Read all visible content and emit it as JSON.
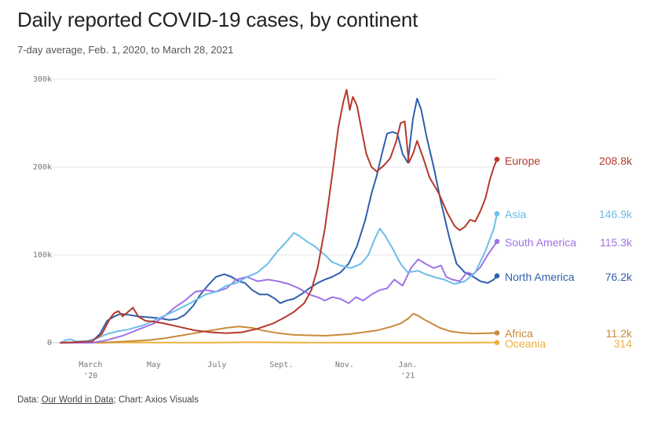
{
  "header": {
    "title": "Daily reported COVID-19 cases, by continent",
    "subtitle": "7-day average, Feb. 1, 2020, to March 28, 2021"
  },
  "footer": {
    "prefix": "Data: ",
    "source_link": "Our World in Data",
    "suffix": "; Chart: Axios Visuals"
  },
  "chart_data": {
    "type": "line",
    "title": "Daily reported COVID-19 cases, by continent",
    "subtitle": "7-day average, Feb. 1, 2020, to March 28, 2021",
    "x_unit": "days since 2020-02-01",
    "xlim": [
      0,
      421
    ],
    "ylim": [
      0,
      300000
    ],
    "y_ticks": [
      {
        "value": 0,
        "label": "0"
      },
      {
        "value": 100000,
        "label": "100k"
      },
      {
        "value": 200000,
        "label": "200k"
      },
      {
        "value": 300000,
        "label": "300k"
      }
    ],
    "x_ticks": [
      {
        "day": 29,
        "label": "March",
        "sublabel": "'20"
      },
      {
        "day": 90,
        "label": "May",
        "sublabel": ""
      },
      {
        "day": 151,
        "label": "July",
        "sublabel": ""
      },
      {
        "day": 213,
        "label": "Sept.",
        "sublabel": ""
      },
      {
        "day": 274,
        "label": "Nov.",
        "sublabel": ""
      },
      {
        "day": 335,
        "label": "Jan.",
        "sublabel": "'21"
      }
    ],
    "grid": true,
    "legend": "direct labels at line ends (right)",
    "series": [
      {
        "name": "Europe",
        "end_label": "208.8k",
        "color": "#b5392a",
        "points": [
          [
            0,
            0
          ],
          [
            30,
            1500
          ],
          [
            40,
            10000
          ],
          [
            48,
            28000
          ],
          [
            52,
            34000
          ],
          [
            56,
            36000
          ],
          [
            60,
            30000
          ],
          [
            66,
            36000
          ],
          [
            70,
            40000
          ],
          [
            75,
            30000
          ],
          [
            82,
            25000
          ],
          [
            90,
            24000
          ],
          [
            100,
            22000
          ],
          [
            115,
            18000
          ],
          [
            130,
            14000
          ],
          [
            145,
            12000
          ],
          [
            160,
            11000
          ],
          [
            175,
            12000
          ],
          [
            190,
            16000
          ],
          [
            205,
            22000
          ],
          [
            215,
            28000
          ],
          [
            225,
            35000
          ],
          [
            235,
            45000
          ],
          [
            242,
            60000
          ],
          [
            248,
            85000
          ],
          [
            255,
            130000
          ],
          [
            262,
            190000
          ],
          [
            268,
            245000
          ],
          [
            273,
            275000
          ],
          [
            276,
            288000
          ],
          [
            279,
            265000
          ],
          [
            282,
            280000
          ],
          [
            286,
            270000
          ],
          [
            290,
            245000
          ],
          [
            295,
            215000
          ],
          [
            300,
            200000
          ],
          [
            305,
            195000
          ],
          [
            312,
            202000
          ],
          [
            318,
            210000
          ],
          [
            324,
            230000
          ],
          [
            328,
            250000
          ],
          [
            332,
            252000
          ],
          [
            336,
            205000
          ],
          [
            340,
            215000
          ],
          [
            344,
            230000
          ],
          [
            350,
            210000
          ],
          [
            356,
            188000
          ],
          [
            365,
            170000
          ],
          [
            373,
            148000
          ],
          [
            380,
            133000
          ],
          [
            385,
            128000
          ],
          [
            390,
            132000
          ],
          [
            395,
            140000
          ],
          [
            400,
            138000
          ],
          [
            405,
            150000
          ],
          [
            410,
            165000
          ],
          [
            414,
            185000
          ],
          [
            418,
            200000
          ],
          [
            421,
            208800
          ]
        ]
      },
      {
        "name": "Asia",
        "end_label": "146.9k",
        "color": "#6cbde9",
        "points": [
          [
            0,
            0
          ],
          [
            5,
            3000
          ],
          [
            10,
            4000
          ],
          [
            15,
            1500
          ],
          [
            25,
            2000
          ],
          [
            35,
            5000
          ],
          [
            45,
            10000
          ],
          [
            55,
            13000
          ],
          [
            65,
            15000
          ],
          [
            80,
            20000
          ],
          [
            95,
            28000
          ],
          [
            110,
            36000
          ],
          [
            125,
            45000
          ],
          [
            140,
            55000
          ],
          [
            150,
            58000
          ],
          [
            160,
            65000
          ],
          [
            170,
            68000
          ],
          [
            180,
            75000
          ],
          [
            190,
            80000
          ],
          [
            200,
            90000
          ],
          [
            210,
            105000
          ],
          [
            218,
            115000
          ],
          [
            225,
            125000
          ],
          [
            230,
            122000
          ],
          [
            238,
            115000
          ],
          [
            245,
            110000
          ],
          [
            255,
            100000
          ],
          [
            262,
            92000
          ],
          [
            270,
            88000
          ],
          [
            280,
            85000
          ],
          [
            290,
            90000
          ],
          [
            297,
            100000
          ],
          [
            303,
            118000
          ],
          [
            308,
            130000
          ],
          [
            313,
            122000
          ],
          [
            320,
            108000
          ],
          [
            328,
            90000
          ],
          [
            335,
            80000
          ],
          [
            345,
            82000
          ],
          [
            352,
            78000
          ],
          [
            360,
            75000
          ],
          [
            370,
            72000
          ],
          [
            380,
            67000
          ],
          [
            390,
            70000
          ],
          [
            400,
            80000
          ],
          [
            410,
            105000
          ],
          [
            418,
            130000
          ],
          [
            421,
            146900
          ]
        ]
      },
      {
        "name": "South America",
        "end_label": "115.3k",
        "color": "#9f72e6",
        "points": [
          [
            0,
            0
          ],
          [
            30,
            0
          ],
          [
            45,
            3000
          ],
          [
            60,
            8000
          ],
          [
            75,
            15000
          ],
          [
            90,
            22000
          ],
          [
            100,
            30000
          ],
          [
            110,
            40000
          ],
          [
            120,
            48000
          ],
          [
            130,
            58000
          ],
          [
            140,
            60000
          ],
          [
            150,
            58000
          ],
          [
            160,
            62000
          ],
          [
            170,
            72000
          ],
          [
            180,
            75000
          ],
          [
            190,
            70000
          ],
          [
            200,
            72000
          ],
          [
            210,
            70000
          ],
          [
            220,
            67000
          ],
          [
            230,
            62000
          ],
          [
            240,
            55000
          ],
          [
            248,
            52000
          ],
          [
            255,
            48000
          ],
          [
            262,
            52000
          ],
          [
            270,
            50000
          ],
          [
            278,
            45000
          ],
          [
            285,
            52000
          ],
          [
            292,
            48000
          ],
          [
            300,
            55000
          ],
          [
            308,
            60000
          ],
          [
            315,
            62000
          ],
          [
            322,
            72000
          ],
          [
            330,
            65000
          ],
          [
            338,
            85000
          ],
          [
            345,
            95000
          ],
          [
            352,
            90000
          ],
          [
            360,
            85000
          ],
          [
            367,
            88000
          ],
          [
            372,
            75000
          ],
          [
            378,
            72000
          ],
          [
            385,
            70000
          ],
          [
            392,
            80000
          ],
          [
            398,
            78000
          ],
          [
            405,
            86000
          ],
          [
            412,
            100000
          ],
          [
            418,
            110000
          ],
          [
            421,
            115300
          ]
        ]
      },
      {
        "name": "North America",
        "end_label": "76.2k",
        "color": "#2f5fae",
        "points": [
          [
            0,
            0
          ],
          [
            30,
            1000
          ],
          [
            38,
            10000
          ],
          [
            45,
            25000
          ],
          [
            52,
            30000
          ],
          [
            58,
            33000
          ],
          [
            65,
            32000
          ],
          [
            75,
            30000
          ],
          [
            85,
            29000
          ],
          [
            95,
            28000
          ],
          [
            105,
            26000
          ],
          [
            112,
            27000
          ],
          [
            120,
            32000
          ],
          [
            128,
            42000
          ],
          [
            135,
            55000
          ],
          [
            142,
            65000
          ],
          [
            150,
            75000
          ],
          [
            158,
            78000
          ],
          [
            165,
            75000
          ],
          [
            172,
            70000
          ],
          [
            178,
            68000
          ],
          [
            185,
            60000
          ],
          [
            192,
            55000
          ],
          [
            200,
            55000
          ],
          [
            207,
            50000
          ],
          [
            212,
            45000
          ],
          [
            218,
            48000
          ],
          [
            225,
            50000
          ],
          [
            232,
            55000
          ],
          [
            240,
            62000
          ],
          [
            248,
            68000
          ],
          [
            255,
            72000
          ],
          [
            262,
            75000
          ],
          [
            270,
            80000
          ],
          [
            278,
            90000
          ],
          [
            286,
            110000
          ],
          [
            294,
            140000
          ],
          [
            300,
            170000
          ],
          [
            305,
            190000
          ],
          [
            310,
            215000
          ],
          [
            315,
            238000
          ],
          [
            320,
            240000
          ],
          [
            325,
            238000
          ],
          [
            330,
            215000
          ],
          [
            335,
            205000
          ],
          [
            340,
            255000
          ],
          [
            344,
            278000
          ],
          [
            348,
            265000
          ],
          [
            353,
            235000
          ],
          [
            360,
            200000
          ],
          [
            367,
            160000
          ],
          [
            375,
            120000
          ],
          [
            382,
            90000
          ],
          [
            390,
            80000
          ],
          [
            397,
            76000
          ],
          [
            405,
            70000
          ],
          [
            412,
            68000
          ],
          [
            418,
            72000
          ],
          [
            421,
            76200
          ]
        ]
      },
      {
        "name": "Africa",
        "end_label": "11.2k",
        "color": "#c98a3a",
        "points": [
          [
            0,
            0
          ],
          [
            40,
            200
          ],
          [
            55,
            1000
          ],
          [
            70,
            2000
          ],
          [
            85,
            3000
          ],
          [
            100,
            5000
          ],
          [
            115,
            8000
          ],
          [
            130,
            11000
          ],
          [
            145,
            14000
          ],
          [
            160,
            17000
          ],
          [
            172,
            18500
          ],
          [
            185,
            17000
          ],
          [
            195,
            14000
          ],
          [
            210,
            11000
          ],
          [
            225,
            9000
          ],
          [
            240,
            8500
          ],
          [
            255,
            8000
          ],
          [
            268,
            9000
          ],
          [
            280,
            10000
          ],
          [
            292,
            12000
          ],
          [
            305,
            14000
          ],
          [
            318,
            18000
          ],
          [
            328,
            22000
          ],
          [
            336,
            28000
          ],
          [
            340,
            33000
          ],
          [
            345,
            31000
          ],
          [
            350,
            27000
          ],
          [
            358,
            22000
          ],
          [
            366,
            17000
          ],
          [
            376,
            13000
          ],
          [
            386,
            11500
          ],
          [
            398,
            10500
          ],
          [
            410,
            10800
          ],
          [
            421,
            11200
          ]
        ]
      },
      {
        "name": "Oceania",
        "end_label": "314",
        "color": "#efb13f",
        "points": [
          [
            0,
            0
          ],
          [
            40,
            200
          ],
          [
            60,
            400
          ],
          [
            100,
            200
          ],
          [
            150,
            300
          ],
          [
            180,
            600
          ],
          [
            200,
            500
          ],
          [
            230,
            300
          ],
          [
            270,
            200
          ],
          [
            320,
            150
          ],
          [
            370,
            100
          ],
          [
            421,
            314
          ]
        ]
      }
    ]
  }
}
